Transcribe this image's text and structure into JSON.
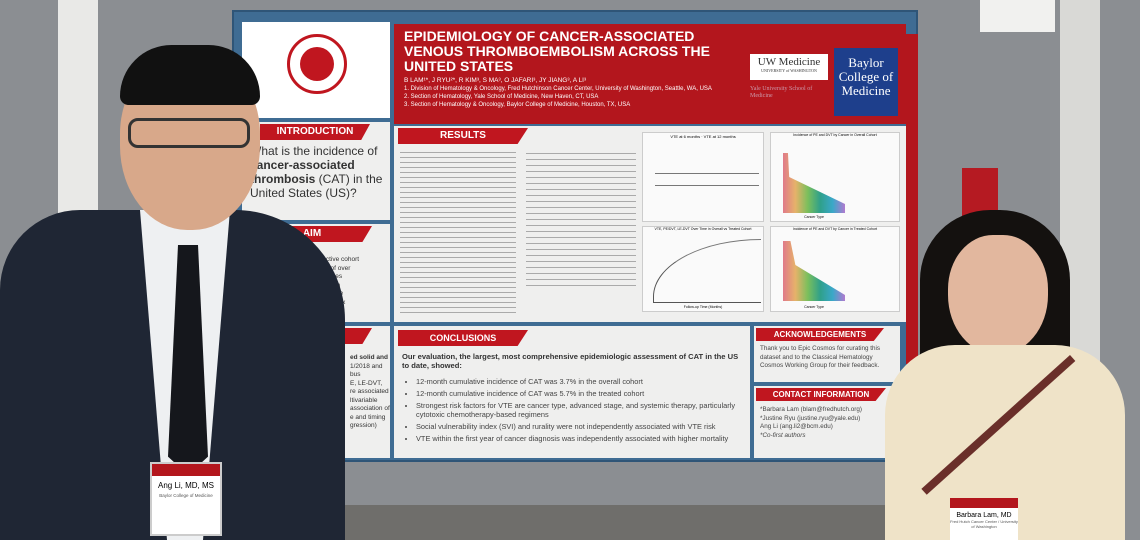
{
  "poster": {
    "title": "EPIDEMIOLOGY OF CANCER-ASSOCIATED VENOUS THROMBOEMBOLISM ACROSS THE UNITED STATES",
    "authors": "B LAM¹*, J RYU²*, R KIM³, S MA³, O JAFARI³, JY JIANG³, A LI³",
    "affiliations": [
      "1. Division of Hematology & Oncology, Fred Hutchinson Cancer Center, University of Washington, Seattle, WA, USA",
      "2. Section of Hematology, Yale School of Medicine, New Haven, CT, USA",
      "3. Section of Hematology & Oncology, Baylor College of Medicine, Houston, TX, USA"
    ],
    "logos": {
      "ash": "AMERICAN SOCIETY OF HEMATOLOGY",
      "uw": "UW Medicine",
      "uw_sub": "UNIVERSITY of WASHINGTON",
      "yale": "Yale University School of Medicine",
      "baylor": "Baylor College of Medicine"
    },
    "introduction": {
      "heading": "INTRODUCTION",
      "text_pre": "What is the incidence of ",
      "text_bold": "cancer-associated thrombosis",
      "text_post": " (CAT) in the United States (US)?"
    },
    "aim": {
      "heading": "AIM",
      "lines": [
        "retrospective cohort",
        "a dataset of over",
        "n all 50 states",
        "US census in",
        "city, insurance",
        "nerability index"
      ]
    },
    "methods": {
      "lines": [
        "ed solid and",
        "1/2018 and",
        "",
        "bus",
        "E, LE-DVT,",
        "re associated",
        "ltivariable",
        "association of",
        "e and timing",
        "gression)"
      ]
    },
    "results": {
      "heading": "RESULTS"
    },
    "conclusions": {
      "heading": "CONCLUSIONS",
      "intro": "Our evaluation, the largest, most comprehensive epidemiologic assessment of CAT in the US to date, showed:",
      "bullets": [
        "12-month cumulative incidence of CAT was 3.7% in the overall cohort",
        "12-month cumulative incidence of CAT was 5.7% in the treated cohort",
        "Strongest risk factors for VTE are cancer type, advanced stage, and systemic therapy, particularly cytotoxic chemotherapy-based regimens",
        "Social vulnerability index (SVI) and rurality were not independently associated with VTE risk",
        "VTE within the first year of cancer diagnosis was independently associated with higher mortality"
      ]
    },
    "acknowledgements": {
      "heading": "ACKNOWLEDGEMENTS",
      "text": "Thank you to Epic Cosmos for curating this dataset and to the Classical Hematology Cosmos Working Group for their feedback."
    },
    "contact": {
      "heading": "CONTACT INFORMATION",
      "lines": [
        "*Barbara Lam (blam@fredhutch.org)",
        "*Justine Ryu (justine.ryu@yale.edu)",
        "Ang Li (ang.li2@bcm.edu)",
        "*Co-first authors"
      ]
    },
    "charts": {
      "c1_legend": [
        "VTE at 6 months",
        "VTE at 12 months"
      ],
      "c2_title": "VTE, PE/DVT, LE-DVT Over Time in Overall vs Treated Cohort",
      "c2_xlabel": "Follow-up Time (Months)",
      "c3_title": "Incidence of PE and DVT by Cancer in Overall Cohort",
      "c4_title": "Incidence of PE and DVT by Cancer in Treated Cohort",
      "xlabel_cancer": "Cancer Type"
    }
  },
  "badges": {
    "left_name": "Ang Li, MD, MS",
    "left_org": "Baylor College of Medicine",
    "right_name": "Barbara Lam, MD",
    "right_org": "Fred Hutch Cancer Center / University of Washington"
  },
  "colors": {
    "poster_blue": "#3f6c93",
    "header_red": "#c0161f",
    "wall": "#8b8e92"
  }
}
